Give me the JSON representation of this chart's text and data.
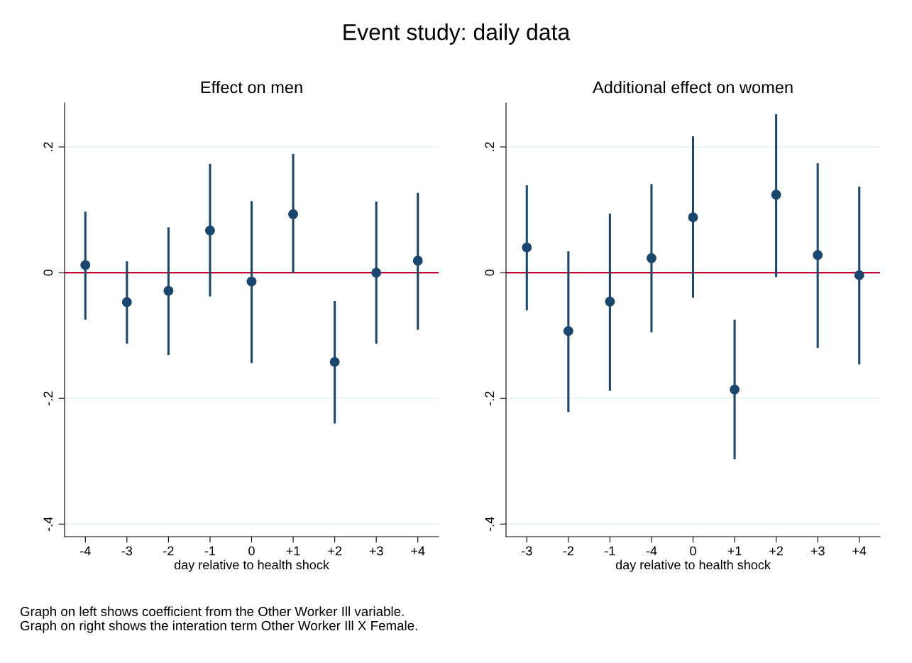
{
  "chart_data": [
    {
      "type": "scatter",
      "title": "Effect on men",
      "xlabel": "day relative to health shock",
      "categories": [
        "-4",
        "-3",
        "-2",
        "-1",
        "0",
        "+1",
        "+2",
        "+3",
        "+4"
      ],
      "values": [
        0.012,
        -0.047,
        -0.029,
        0.067,
        -0.014,
        0.093,
        -0.142,
        0.0,
        0.019
      ],
      "errors": [
        [
          -0.075,
          0.097
        ],
        [
          -0.113,
          0.018
        ],
        [
          -0.131,
          0.072
        ],
        [
          -0.038,
          0.173
        ],
        [
          -0.144,
          0.114
        ],
        [
          -0.001,
          0.189
        ],
        [
          -0.24,
          -0.045
        ],
        [
          -0.113,
          0.113
        ],
        [
          -0.091,
          0.127
        ]
      ],
      "color": "#1a476f",
      "marker": "circle",
      "ylim": [
        -0.42,
        0.27
      ],
      "yticks": [
        {
          "value": -0.4,
          "label": "-.4"
        },
        {
          "value": -0.2,
          "label": "-.2"
        },
        0,
        {
          "value": 0.2,
          "label": ".2"
        }
      ],
      "grid": "y",
      "ref_lines": [
        {
          "axis": "y",
          "value": 0,
          "color": "#c10534"
        }
      ],
      "annotations": [
        "Event study: daily data",
        "Graph on left shows coefficient from the Other Worker Ill variable.",
        "Graph on right shows the interation term Other Worker Ill X Female."
      ]
    },
    {
      "type": "scatter",
      "title": "Additional effect on women",
      "xlabel": "day relative to health shock",
      "categories": [
        "-3",
        "-2",
        "-1",
        "-4",
        "0",
        "+1",
        "+2",
        "+3",
        "+4"
      ],
      "values": [
        0.04,
        -0.093,
        -0.046,
        0.023,
        0.088,
        -0.186,
        0.124,
        0.028,
        -0.004
      ],
      "errors": [
        [
          -0.06,
          0.139
        ],
        [
          -0.222,
          0.034
        ],
        [
          -0.188,
          0.094
        ],
        [
          -0.095,
          0.141
        ],
        [
          -0.04,
          0.217
        ],
        [
          -0.297,
          -0.075
        ],
        [
          -0.007,
          0.252
        ],
        [
          -0.12,
          0.174
        ],
        [
          -0.146,
          0.137
        ]
      ],
      "color": "#1a476f",
      "marker": "circle",
      "ylim": [
        -0.42,
        0.27
      ],
      "yticks": [
        {
          "value": -0.4,
          "label": "-.4"
        },
        {
          "value": -0.2,
          "label": "-.2"
        },
        0,
        {
          "value": 0.2,
          "label": ".2"
        }
      ],
      "grid": "y",
      "ref_lines": [
        {
          "axis": "y",
          "value": 0,
          "color": "#c10534"
        }
      ]
    }
  ]
}
